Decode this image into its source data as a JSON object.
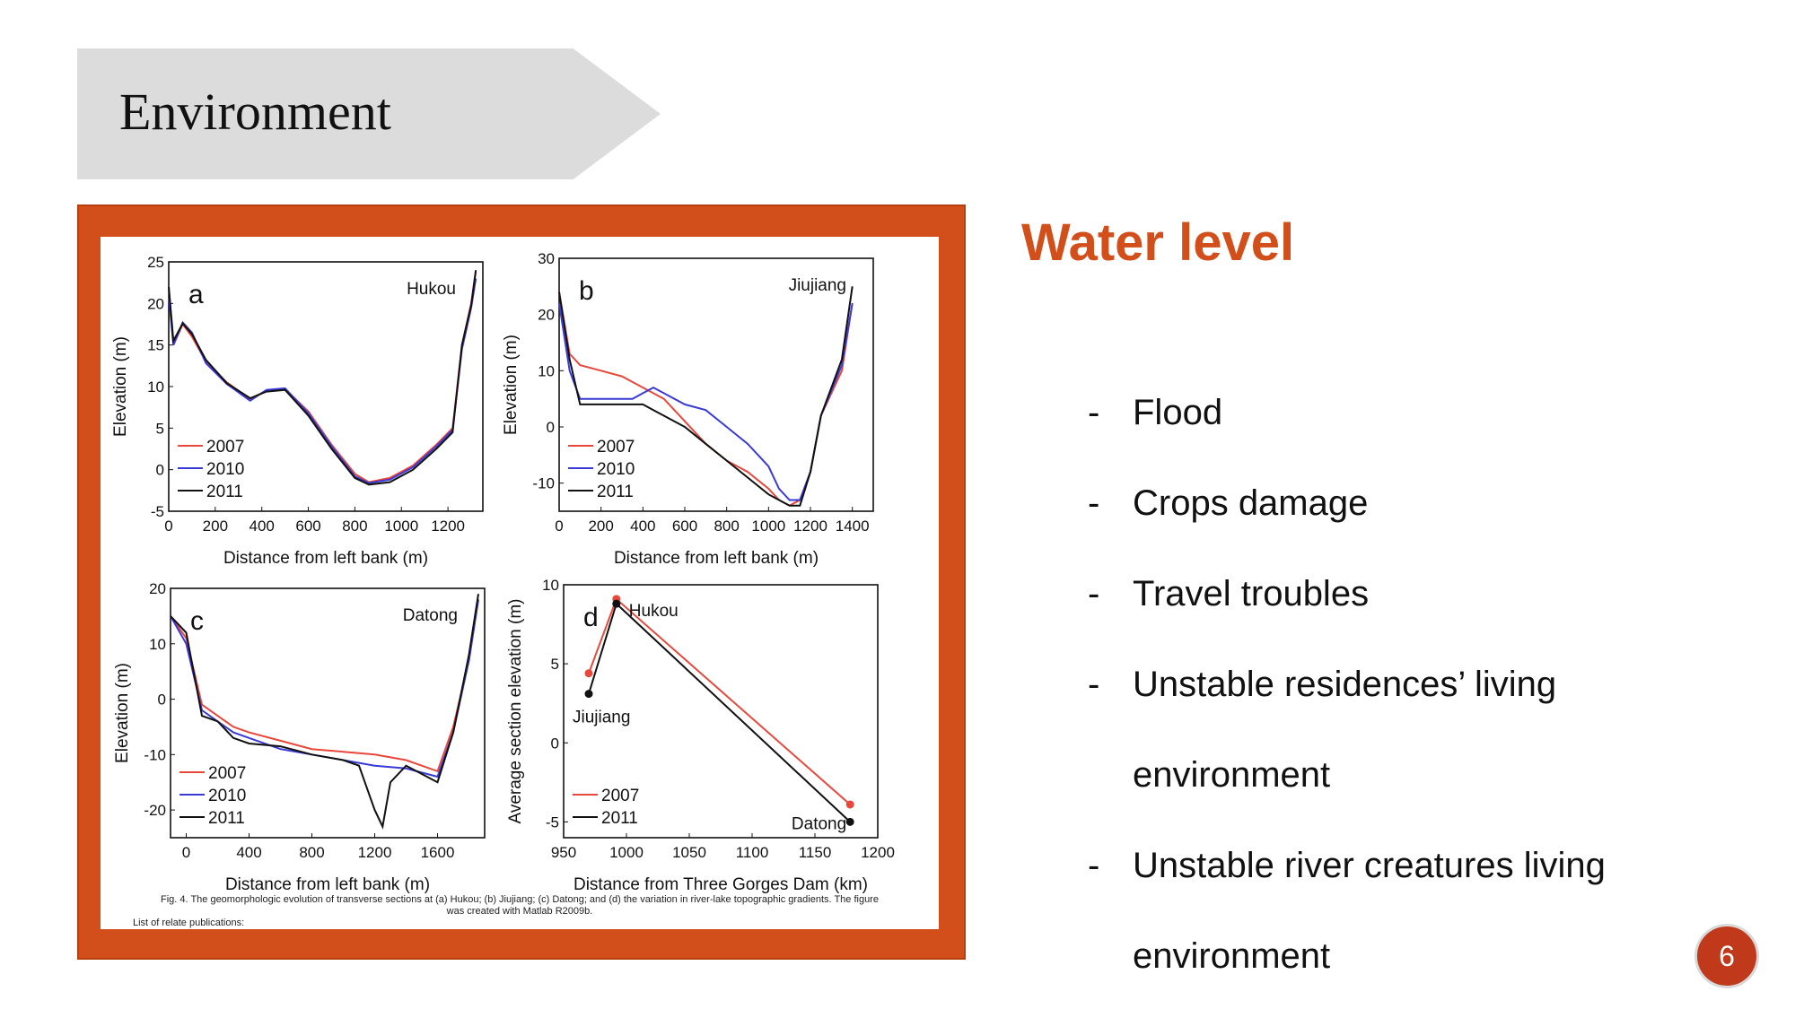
{
  "slide": {
    "title": "Environment",
    "heading": "Water level",
    "page_number": "6",
    "bullets": [
      "Flood",
      "Crops damage",
      "Travel troubles",
      "Unstable residences’ living environment",
      "Unstable river creatures living environment"
    ],
    "bullet_marker": "-",
    "colors": {
      "accent": "#d24e1a",
      "banner": "#dcdcdc",
      "badge": "#c0391b"
    }
  },
  "figure": {
    "caption": "Fig. 4. The geomorphologic evolution of transverse sections at (a) Hukou; (b) Jiujiang; (c) Datong; and (d) the variation in river-lake topographic gradients. The figure was created with Matlab R2009b.",
    "caption_line1": "Fig. 4. The geomorphologic evolution of transverse sections at (a) Hukou; (b) Jiujiang; (c) Datong; and (d) the variation in river-lake topographic gradients. The figure",
    "caption_line2": "was created with Matlab R2009b.",
    "footnote": "List of relate publications:"
  },
  "chart_data": [
    {
      "type": "line",
      "panel": "a",
      "location": "Hukou",
      "xlabel": "Distance from left bank (m)",
      "ylabel": "Elevation (m)",
      "xlim": [
        0,
        1350
      ],
      "ylim": [
        -5,
        25
      ],
      "xticks": [
        0,
        200,
        400,
        600,
        800,
        1000,
        1200
      ],
      "yticks": [
        -5,
        0,
        5,
        10,
        15,
        20,
        25
      ],
      "series": [
        {
          "name": "2007",
          "color": "#e8473b",
          "x": [
            0,
            20,
            60,
            100,
            160,
            250,
            350,
            420,
            500,
            600,
            700,
            800,
            860,
            950,
            1050,
            1150,
            1220,
            1260,
            1300,
            1320
          ],
          "y": [
            22,
            15,
            17.5,
            16,
            13,
            10.5,
            8.5,
            9.5,
            9.7,
            7,
            3,
            -0.5,
            -1.5,
            -1,
            0.5,
            3,
            5,
            15,
            20,
            24
          ]
        },
        {
          "name": "2010",
          "color": "#3a3ad6",
          "x": [
            0,
            20,
            60,
            100,
            160,
            250,
            350,
            420,
            500,
            600,
            700,
            800,
            860,
            950,
            1050,
            1150,
            1220,
            1260,
            1300,
            1320
          ],
          "y": [
            21,
            15,
            17.7,
            16.5,
            12.8,
            10.3,
            8.3,
            9.6,
            9.8,
            6.8,
            2.8,
            -0.8,
            -1.6,
            -1.2,
            0.3,
            2.8,
            4.8,
            14.5,
            19.5,
            23
          ]
        },
        {
          "name": "2011",
          "color": "#111111",
          "x": [
            0,
            20,
            60,
            100,
            160,
            250,
            350,
            420,
            500,
            600,
            700,
            800,
            860,
            950,
            1050,
            1150,
            1220,
            1260,
            1300,
            1320
          ],
          "y": [
            22,
            15.5,
            17.6,
            16.3,
            13.2,
            10.4,
            8.6,
            9.4,
            9.6,
            6.5,
            2.5,
            -1,
            -1.8,
            -1.5,
            0,
            2.5,
            4.5,
            15,
            19.8,
            24
          ]
        }
      ]
    },
    {
      "type": "line",
      "panel": "b",
      "location": "Jiujiang",
      "xlabel": "Distance from left bank (m)",
      "ylabel": "Elevation (m)",
      "xlim": [
        0,
        1500
      ],
      "ylim": [
        -15,
        30
      ],
      "xticks": [
        0,
        200,
        400,
        600,
        800,
        1000,
        1200,
        1400
      ],
      "yticks": [
        -10,
        0,
        10,
        20,
        30
      ],
      "series": [
        {
          "name": "2007",
          "color": "#e8473b",
          "x": [
            0,
            50,
            100,
            200,
            300,
            350,
            400,
            450,
            500,
            600,
            700,
            800,
            900,
            1000,
            1050,
            1100,
            1150,
            1200,
            1250,
            1350,
            1400
          ],
          "y": [
            24,
            13,
            11,
            10,
            9,
            8,
            7,
            6,
            5,
            1,
            -3,
            -6,
            -8,
            -11,
            -13,
            -14,
            -13,
            -8,
            2,
            10,
            22
          ]
        },
        {
          "name": "2010",
          "color": "#3a3ad6",
          "x": [
            0,
            50,
            100,
            200,
            300,
            350,
            400,
            450,
            500,
            600,
            700,
            800,
            900,
            1000,
            1050,
            1100,
            1150,
            1200,
            1250,
            1350,
            1400
          ],
          "y": [
            22,
            10,
            5,
            5,
            5,
            5,
            6,
            7,
            6,
            4,
            3,
            0,
            -3,
            -7,
            -11,
            -13,
            -13,
            -8,
            2,
            11,
            22
          ]
        },
        {
          "name": "2011",
          "color": "#111111",
          "x": [
            0,
            50,
            100,
            200,
            300,
            350,
            400,
            450,
            500,
            600,
            700,
            800,
            900,
            1000,
            1050,
            1100,
            1150,
            1200,
            1250,
            1350,
            1400
          ],
          "y": [
            24,
            12,
            4,
            4,
            4,
            4,
            4,
            3,
            2,
            0,
            -3,
            -6,
            -9,
            -12,
            -13,
            -14,
            -14,
            -8,
            2,
            12,
            25
          ]
        }
      ]
    },
    {
      "type": "line",
      "panel": "c",
      "location": "Datong",
      "xlabel": "Distance from left bank (m)",
      "ylabel": "Elevation (m)",
      "xlim": [
        -100,
        1900
      ],
      "ylim": [
        -25,
        20
      ],
      "xticks": [
        0,
        400,
        800,
        1200,
        1600
      ],
      "yticks": [
        -20,
        -10,
        0,
        10,
        20
      ],
      "series": [
        {
          "name": "2007",
          "color": "#e8473b",
          "x": [
            -100,
            0,
            100,
            200,
            300,
            400,
            600,
            800,
            1000,
            1200,
            1400,
            1600,
            1700,
            1800,
            1860
          ],
          "y": [
            15,
            11,
            -1,
            -3,
            -5,
            -6,
            -7.5,
            -9,
            -9.5,
            -10,
            -11,
            -13,
            -5,
            7,
            18
          ]
        },
        {
          "name": "2010",
          "color": "#3a3ad6",
          "x": [
            -100,
            0,
            100,
            200,
            300,
            400,
            600,
            800,
            1000,
            1200,
            1400,
            1600,
            1700,
            1800,
            1860
          ],
          "y": [
            15,
            10,
            -2,
            -4,
            -6,
            -7,
            -9,
            -10,
            -11,
            -12,
            -12.5,
            -14,
            -6,
            7,
            18
          ]
        },
        {
          "name": "2011",
          "color": "#111111",
          "x": [
            -100,
            0,
            100,
            200,
            300,
            400,
            600,
            800,
            1000,
            1100,
            1200,
            1250,
            1300,
            1400,
            1600,
            1700,
            1800,
            1860
          ],
          "y": [
            15,
            12,
            -3,
            -4,
            -7,
            -8,
            -8.5,
            -10,
            -11,
            -12,
            -20,
            -23,
            -15,
            -12,
            -15,
            -6,
            8,
            19
          ]
        }
      ]
    },
    {
      "type": "line",
      "panel": "d",
      "xlabel": "Distance from Three Gorges Dam (km)",
      "ylabel": "Average section elevation (m)",
      "xlim": [
        950,
        1200
      ],
      "ylim": [
        -6,
        10
      ],
      "xticks": [
        950,
        1000,
        1050,
        1100,
        1150,
        1200
      ],
      "yticks": [
        -5,
        0,
        5,
        10
      ],
      "point_labels": [
        "Jiujiang",
        "Hukou",
        "Datong"
      ],
      "series": [
        {
          "name": "2007",
          "color": "#e8473b",
          "x": [
            970,
            992,
            1178
          ],
          "y": [
            4.4,
            9.1,
            -3.9
          ]
        },
        {
          "name": "2011",
          "color": "#111111",
          "x": [
            970,
            992,
            1178
          ],
          "y": [
            3.1,
            8.8,
            -5
          ]
        }
      ]
    }
  ]
}
